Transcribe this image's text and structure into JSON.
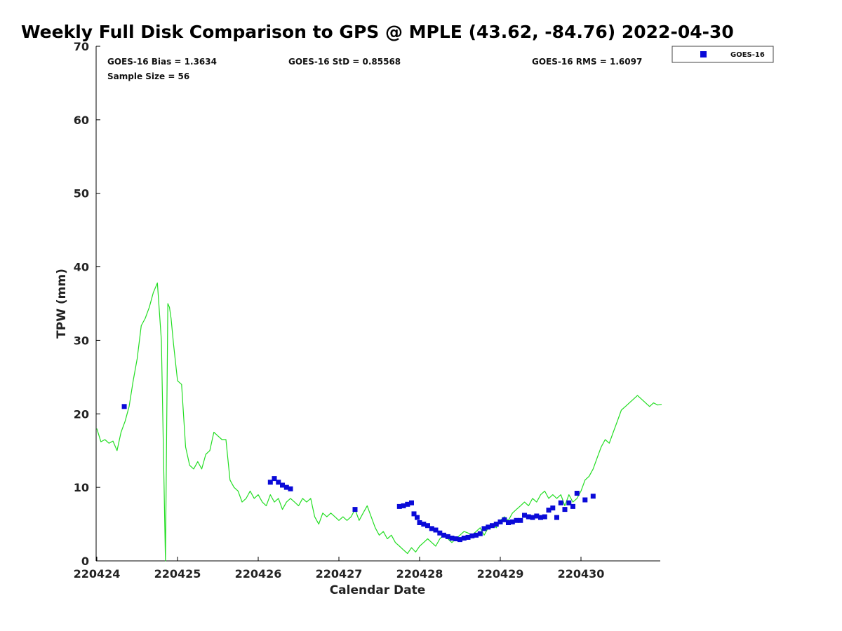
{
  "chart_data": {
    "type": "line",
    "title": "Weekly Full Disk Comparison to GPS @ MPLE (43.62, -84.76) 2022-04-30",
    "xlabel": "Calendar Date",
    "ylabel": "TPW (mm)",
    "x_tick_labels": [
      "220424",
      "220425",
      "220426",
      "220427",
      "220428",
      "220429",
      "220430"
    ],
    "ylim": [
      0,
      70
    ],
    "y_ticks": [
      0,
      10,
      20,
      30,
      40,
      50,
      60,
      70
    ],
    "grid": false,
    "legend": {
      "position": "top-right outside",
      "entries": [
        "GOES-16"
      ]
    },
    "stats": {
      "bias": "GOES-16 Bias = 1.3634",
      "std": "GOES-16 StD = 0.85568",
      "rms": "GOES-16 RMS = 1.6097",
      "sample": "Sample Size = 56"
    },
    "colors": {
      "gps_line": "#22dd22",
      "goes_marker": "#0a0ad8"
    },
    "series": [
      {
        "style": "line",
        "x": [
          0.0,
          0.05,
          0.1,
          0.15,
          0.2,
          0.25,
          0.3,
          0.35,
          0.4,
          0.45,
          0.5,
          0.55,
          0.6,
          0.65,
          0.7,
          0.75,
          0.8,
          0.85,
          0.88,
          0.9,
          0.92,
          0.95,
          1.0,
          1.05,
          1.1,
          1.15,
          1.2,
          1.25,
          1.3,
          1.35,
          1.4,
          1.45,
          1.5,
          1.55,
          1.6,
          1.65,
          1.7,
          1.75,
          1.8,
          1.85,
          1.9,
          1.95,
          2.0,
          2.05,
          2.1,
          2.15,
          2.2,
          2.25,
          2.3,
          2.35,
          2.4,
          2.45,
          2.5,
          2.55,
          2.6,
          2.65,
          2.7,
          2.75,
          2.8,
          2.85,
          2.9,
          2.95,
          3.0,
          3.05,
          3.1,
          3.15,
          3.2,
          3.25,
          3.3,
          3.35,
          3.4,
          3.45,
          3.5,
          3.55,
          3.6,
          3.65,
          3.7,
          3.75,
          3.8,
          3.85,
          3.9,
          3.95,
          4.0,
          4.05,
          4.1,
          4.15,
          4.2,
          4.25,
          4.3,
          4.35,
          4.4,
          4.45,
          4.5,
          4.55,
          4.6,
          4.65,
          4.7,
          4.75,
          4.8,
          4.85,
          4.9,
          4.95,
          5.0,
          5.05,
          5.1,
          5.15,
          5.2,
          5.25,
          5.3,
          5.35,
          5.4,
          5.45,
          5.5,
          5.55,
          5.6,
          5.65,
          5.7,
          5.75,
          5.8,
          5.85,
          5.9,
          5.95,
          6.0,
          6.05,
          6.1,
          6.15,
          6.2,
          6.25,
          6.3,
          6.35,
          6.4,
          6.45,
          6.5,
          6.55,
          6.6,
          6.65,
          6.7,
          6.75,
          6.8,
          6.85,
          6.9,
          6.95,
          7.0
        ],
        "values": [
          18.0,
          16.2,
          16.5,
          16.0,
          16.3,
          15.0,
          17.5,
          19.0,
          21.0,
          24.5,
          27.5,
          32.0,
          33.0,
          34.5,
          36.5,
          37.8,
          30.0,
          0.0,
          35.0,
          34.5,
          33.0,
          29.5,
          24.5,
          24.0,
          15.5,
          13.0,
          12.5,
          13.5,
          12.5,
          14.5,
          15.0,
          17.5,
          17.0,
          16.5,
          16.5,
          11.0,
          10.0,
          9.5,
          8.0,
          8.5,
          9.5,
          8.5,
          9.0,
          8.0,
          7.5,
          9.0,
          8.0,
          8.5,
          7.0,
          8.0,
          8.5,
          8.0,
          7.5,
          8.5,
          8.0,
          8.5,
          6.0,
          5.0,
          6.5,
          6.0,
          6.5,
          6.0,
          5.5,
          6.0,
          5.5,
          6.0,
          7.0,
          5.5,
          6.5,
          7.5,
          6.0,
          4.5,
          3.5,
          4.0,
          3.0,
          3.5,
          2.5,
          2.0,
          1.5,
          1.0,
          1.8,
          1.2,
          2.0,
          2.5,
          3.0,
          2.5,
          2.0,
          3.0,
          3.5,
          3.0,
          2.5,
          3.0,
          3.5,
          4.0,
          3.8,
          3.5,
          4.0,
          4.5,
          3.5,
          4.5,
          5.0,
          4.5,
          5.5,
          6.0,
          5.5,
          6.5,
          7.0,
          7.5,
          8.0,
          7.5,
          8.5,
          8.0,
          9.0,
          9.5,
          8.5,
          9.0,
          8.5,
          9.0,
          7.5,
          9.0,
          8.0,
          8.5,
          9.5,
          11.0,
          11.5,
          12.5,
          14.0,
          15.5,
          16.5,
          16.0,
          17.5,
          19.0,
          20.5,
          21.0,
          21.5,
          22.0,
          22.5,
          22.0,
          21.5,
          21.0,
          21.5,
          21.2,
          21.3
        ]
      },
      {
        "name": "GOES-16",
        "style": "markers",
        "x": [
          0.34,
          2.15,
          2.2,
          2.25,
          2.3,
          2.35,
          2.4,
          3.2,
          3.75,
          3.8,
          3.85,
          3.9,
          3.93,
          3.97,
          4.0,
          4.05,
          4.1,
          4.15,
          4.2,
          4.25,
          4.3,
          4.35,
          4.4,
          4.45,
          4.5,
          4.55,
          4.6,
          4.65,
          4.7,
          4.75,
          4.8,
          4.85,
          4.9,
          4.95,
          5.0,
          5.05,
          5.1,
          5.15,
          5.2,
          5.25,
          5.3,
          5.35,
          5.4,
          5.45,
          5.5,
          5.55,
          5.6,
          5.65,
          5.7,
          5.75,
          5.8,
          5.85,
          5.9,
          5.95,
          6.05,
          6.15
        ],
        "values": [
          21.0,
          10.7,
          11.2,
          10.7,
          10.3,
          10.0,
          9.8,
          7.0,
          7.4,
          7.5,
          7.7,
          7.9,
          6.4,
          5.9,
          5.2,
          5.0,
          4.8,
          4.4,
          4.2,
          3.8,
          3.5,
          3.3,
          3.1,
          3.0,
          2.9,
          3.1,
          3.2,
          3.4,
          3.5,
          3.7,
          4.4,
          4.6,
          4.8,
          5.0,
          5.3,
          5.6,
          5.2,
          5.3,
          5.5,
          5.5,
          6.2,
          6.0,
          5.9,
          6.1,
          5.9,
          6.0,
          6.9,
          7.2,
          5.9,
          7.9,
          7.0,
          7.9,
          7.4,
          9.2,
          8.3,
          8.8
        ]
      }
    ]
  }
}
